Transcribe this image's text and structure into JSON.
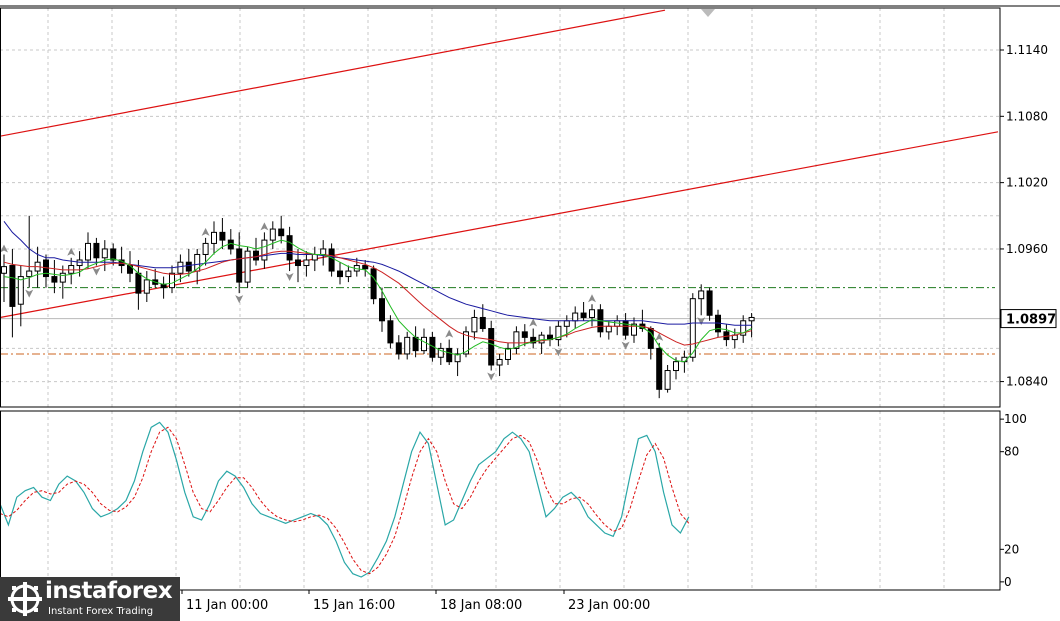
{
  "colors": {
    "channel": "#dd1111",
    "ma_blue": "#1a1aa0",
    "ma_red": "#cc2222",
    "ma_green": "#22bb22",
    "stoch_main": "#2aa7a7",
    "stoch_signal": "#dd1111",
    "level_green": "#1f7a1f",
    "level_orange": "#cc6622",
    "grid": "#c8c8c8"
  },
  "branding": {
    "name": "instaforex",
    "tagline": "Instant Forex Trading"
  },
  "chart_data": [
    {
      "type": "candlestick",
      "ylim": [
        1.0817,
        1.1178
      ],
      "yticks": [
        "1.1140",
        "1.1080",
        "1.1020",
        "1.0960",
        "1.0840"
      ],
      "current_price_label": "1.0897",
      "current_price": 1.0897,
      "levels": {
        "green_dashed": 1.0925,
        "orange_dashed": 1.0865
      },
      "channel_lines": [
        {
          "from": [
            0,
            1.1062
          ],
          "to": [
            665,
            1.1176
          ]
        },
        {
          "from": [
            0,
            1.0898
          ],
          "to": [
            998,
            1.1066
          ]
        }
      ],
      "candles": [
        [
          1.0938,
          1.0955,
          1.0912,
          1.0944
        ],
        [
          1.0945,
          1.096,
          1.088,
          1.0908
        ],
        [
          1.091,
          1.0945,
          1.089,
          1.0935
        ],
        [
          1.0935,
          1.099,
          1.0925,
          1.094
        ],
        [
          1.094,
          1.0962,
          1.0925,
          1.0948
        ],
        [
          1.095,
          1.0955,
          1.0925,
          1.0935
        ],
        [
          1.0935,
          1.095,
          1.092,
          1.093
        ],
        [
          1.093,
          1.0945,
          1.0915,
          1.0938
        ],
        [
          1.0938,
          1.0952,
          1.0928,
          1.0945
        ],
        [
          1.0945,
          1.0958,
          1.0935,
          1.095
        ],
        [
          1.095,
          1.0975,
          1.0942,
          1.0965
        ],
        [
          1.0965,
          1.097,
          1.0945,
          1.0952
        ],
        [
          1.0952,
          1.0968,
          1.094,
          1.096
        ],
        [
          1.096,
          1.0965,
          1.0945,
          1.095
        ],
        [
          1.095,
          1.0962,
          1.0938,
          1.0945
        ],
        [
          1.0945,
          1.0958,
          1.093,
          1.0938
        ],
        [
          1.0938,
          1.095,
          1.0905,
          1.092
        ],
        [
          1.092,
          1.094,
          1.0912,
          1.0932
        ],
        [
          1.0932,
          1.0942,
          1.0925,
          1.0928
        ],
        [
          1.0928,
          1.0935,
          1.0915,
          1.0925
        ],
        [
          1.0925,
          1.0945,
          1.092,
          1.0938
        ],
        [
          1.0938,
          1.0955,
          1.093,
          1.0948
        ],
        [
          1.0948,
          1.096,
          1.0935,
          1.094
        ],
        [
          1.094,
          1.096,
          1.0928,
          1.0955
        ],
        [
          1.0955,
          1.097,
          1.0945,
          1.0965
        ],
        [
          1.0965,
          1.0985,
          1.0955,
          1.0975
        ],
        [
          1.0975,
          1.0988,
          1.096,
          1.0968
        ],
        [
          1.0968,
          1.0978,
          1.0955,
          1.096
        ],
        [
          1.096,
          1.0975,
          1.092,
          1.093
        ],
        [
          1.093,
          1.0962,
          1.0925,
          1.0958
        ],
        [
          1.0958,
          1.097,
          1.0945,
          1.095
        ],
        [
          1.095,
          1.0975,
          1.0942,
          1.0968
        ],
        [
          1.0968,
          1.0985,
          1.096,
          1.0978
        ],
        [
          1.0978,
          1.099,
          1.0965,
          1.0972
        ],
        [
          1.0972,
          1.098,
          1.094,
          1.095
        ],
        [
          1.095,
          1.096,
          1.093,
          1.0945
        ],
        [
          1.0945,
          1.0958,
          1.0935,
          1.095
        ],
        [
          1.095,
          1.0962,
          1.094,
          1.0955
        ],
        [
          1.0955,
          1.0968,
          1.0945,
          1.096
        ],
        [
          1.096,
          1.0965,
          1.0935,
          1.094
        ],
        [
          1.094,
          1.0948,
          1.0928,
          1.0935
        ],
        [
          1.0935,
          1.0945,
          1.093,
          1.094
        ],
        [
          1.094,
          1.0952,
          1.0935,
          1.0945
        ],
        [
          1.0945,
          1.095,
          1.0935,
          1.0942
        ],
        [
          1.0942,
          1.0945,
          1.091,
          1.0915
        ],
        [
          1.0915,
          1.0925,
          1.0885,
          1.0895
        ],
        [
          1.0895,
          1.09,
          1.087,
          1.0875
        ],
        [
          1.0875,
          1.0882,
          1.086,
          1.0865
        ],
        [
          1.0865,
          1.0885,
          1.086,
          1.088
        ],
        [
          1.088,
          1.089,
          1.0862,
          1.0868
        ],
        [
          1.0868,
          1.0888,
          1.0865,
          1.088
        ],
        [
          1.088,
          1.0885,
          1.0858,
          1.0862
        ],
        [
          1.0862,
          1.0875,
          1.0855,
          1.087
        ],
        [
          1.087,
          1.0878,
          1.0855,
          1.0858
        ],
        [
          1.0858,
          1.087,
          1.0845,
          1.0865
        ],
        [
          1.0865,
          1.089,
          1.0862,
          1.0885
        ],
        [
          1.0885,
          1.0905,
          1.0878,
          1.0898
        ],
        [
          1.0898,
          1.091,
          1.0885,
          1.0888
        ],
        [
          1.0888,
          1.0895,
          1.085,
          1.0855
        ],
        [
          1.0855,
          1.0865,
          1.0845,
          1.086
        ],
        [
          1.086,
          1.0875,
          1.0855,
          1.087
        ],
        [
          1.087,
          1.089,
          1.0865,
          1.0885
        ],
        [
          1.0885,
          1.0892,
          1.0872,
          1.088
        ],
        [
          1.088,
          1.0888,
          1.087,
          1.0875
        ],
        [
          1.0875,
          1.0885,
          1.0865,
          1.0882
        ],
        [
          1.0882,
          1.089,
          1.0872,
          1.0878
        ],
        [
          1.0878,
          1.0895,
          1.0872,
          1.089
        ],
        [
          1.089,
          1.09,
          1.088,
          1.0895
        ],
        [
          1.0895,
          1.0908,
          1.0888,
          1.0902
        ],
        [
          1.0902,
          1.0912,
          1.0895,
          1.0898
        ],
        [
          1.0898,
          1.091,
          1.089,
          1.0905
        ],
        [
          1.0905,
          1.091,
          1.088,
          1.0885
        ],
        [
          1.0885,
          1.0895,
          1.0878,
          1.089
        ],
        [
          1.089,
          1.09,
          1.0882,
          1.0895
        ],
        [
          1.0895,
          1.0902,
          1.0878,
          1.0882
        ],
        [
          1.0882,
          1.0898,
          1.0875,
          1.0892
        ],
        [
          1.0892,
          1.0905,
          1.0885,
          1.0888
        ],
        [
          1.0888,
          1.089,
          1.086,
          1.087
        ],
        [
          1.087,
          1.0875,
          1.0825,
          1.0833
        ],
        [
          1.0833,
          1.0855,
          1.083,
          1.085
        ],
        [
          1.085,
          1.0862,
          1.0842,
          1.0858
        ],
        [
          1.0858,
          1.0868,
          1.0848,
          1.0862
        ],
        [
          1.0862,
          1.092,
          1.0858,
          1.0915
        ],
        [
          1.0915,
          1.0928,
          1.09,
          1.0922
        ],
        [
          1.0922,
          1.0925,
          1.0895,
          1.09
        ],
        [
          1.09,
          1.0905,
          1.088,
          1.0885
        ],
        [
          1.0885,
          1.0892,
          1.0872,
          1.0878
        ],
        [
          1.0878,
          1.0888,
          1.087,
          1.0882
        ],
        [
          1.0882,
          1.09,
          1.0875,
          1.0895
        ],
        [
          1.0895,
          1.0902,
          1.088,
          1.0898
        ]
      ],
      "moving_averages": {
        "blue": [
          1.0985,
          1.0975,
          1.0968,
          1.096,
          1.0955,
          1.0952,
          1.0952,
          1.095,
          1.0949,
          1.0948,
          1.0948,
          1.0948,
          1.0948,
          1.0948,
          1.0947,
          1.0946,
          1.0945,
          1.0944,
          1.0943,
          1.0943,
          1.0943,
          1.0944,
          1.0945,
          1.0946,
          1.0947,
          1.0948,
          1.0949,
          1.095,
          1.0951,
          1.0952,
          1.0953,
          1.0954,
          1.0955,
          1.0956,
          1.0956,
          1.0955,
          1.0955,
          1.0955,
          1.0954,
          1.0953,
          1.0952,
          1.0951,
          1.095,
          1.0949,
          1.0948,
          1.0946,
          1.0943,
          1.094,
          1.0936,
          1.0932,
          1.0928,
          1.0924,
          1.092,
          1.0916,
          1.0913,
          1.091,
          1.0908,
          1.0906,
          1.0904,
          1.0902,
          1.09,
          1.0899,
          1.0898,
          1.0897,
          1.0896,
          1.0895,
          1.0895,
          1.0895,
          1.0895,
          1.0895,
          1.0895,
          1.0895,
          1.0895,
          1.0895,
          1.0895,
          1.0895,
          1.0895,
          1.0894,
          1.0893,
          1.0892,
          1.0892,
          1.0892,
          1.0893,
          1.0893,
          1.0893,
          1.0893,
          1.0892,
          1.0891,
          1.0891,
          1.0891
        ],
        "red": [
          1.0948,
          1.0946,
          1.0945,
          1.0944,
          1.0944,
          1.0943,
          1.0942,
          1.0941,
          1.0941,
          1.0941,
          1.0942,
          1.0944,
          1.0946,
          1.0947,
          1.0947,
          1.0946,
          1.0944,
          1.0942,
          1.094,
          1.0938,
          1.0937,
          1.0937,
          1.0938,
          1.094,
          1.0942,
          1.0945,
          1.0948,
          1.095,
          1.0951,
          1.0952,
          1.0953,
          1.0955,
          1.0957,
          1.0958,
          1.0958,
          1.0957,
          1.0956,
          1.0955,
          1.0955,
          1.0954,
          1.0952,
          1.095,
          1.0948,
          1.0946,
          1.0943,
          1.0939,
          1.0934,
          1.0929,
          1.0922,
          1.0915,
          1.0908,
          1.0902,
          1.0896,
          1.089,
          1.0885,
          1.0882,
          1.088,
          1.0879,
          1.0878,
          1.0876,
          1.0875,
          1.0875,
          1.0875,
          1.0876,
          1.0877,
          1.0878,
          1.088,
          1.0882,
          1.0885,
          1.0887,
          1.0889,
          1.089,
          1.089,
          1.089,
          1.089,
          1.089,
          1.089,
          1.0888,
          1.0884,
          1.088,
          1.0876,
          1.0873,
          1.0874,
          1.0876,
          1.0878,
          1.088,
          1.0881,
          1.0882,
          1.0884,
          1.0886
        ],
        "green": [
          1.0935,
          1.0934,
          1.0932,
          1.0934,
          1.0937,
          1.0938,
          1.0937,
          1.0936,
          1.0937,
          1.0939,
          1.0944,
          1.0947,
          1.095,
          1.0951,
          1.0949,
          1.0945,
          1.0938,
          1.0933,
          1.093,
          1.0928,
          1.0929,
          1.0933,
          1.0937,
          1.0942,
          1.0948,
          1.0956,
          1.0962,
          1.0965,
          1.0963,
          1.0962,
          1.096,
          1.0962,
          1.0965,
          1.0968,
          1.0966,
          1.0961,
          1.0957,
          1.0955,
          1.0955,
          1.0952,
          1.0948,
          1.0944,
          1.0942,
          1.0941,
          1.0934,
          1.0922,
          1.0908,
          1.0895,
          1.0887,
          1.088,
          1.0876,
          1.0872,
          1.0868,
          1.0866,
          1.0864,
          1.0867,
          1.0872,
          1.0876,
          1.0874,
          1.0871,
          1.0869,
          1.0871,
          1.0874,
          1.0876,
          1.0878,
          1.0878,
          1.088,
          1.0883,
          1.0888,
          1.0892,
          1.0896,
          1.0895,
          1.0894,
          1.0893,
          1.0892,
          1.0891,
          1.0889,
          1.0884,
          1.0872,
          1.0864,
          1.0859,
          1.0858,
          1.0866,
          1.0878,
          1.0886,
          1.0888,
          1.0887,
          1.0884,
          1.0884,
          1.0888
        ]
      }
    },
    {
      "type": "line",
      "ylim": [
        -5,
        105
      ],
      "yticks": [
        "100",
        "80",
        "20",
        "0"
      ],
      "x_labels": [
        "11 Jan 00:00",
        "15 Jan 16:00",
        "18 Jan 08:00",
        "23 Jan 00:00"
      ],
      "series": [
        {
          "values": [
            48,
            35,
            52,
            56,
            58,
            52,
            50,
            60,
            65,
            62,
            55,
            45,
            40,
            42,
            45,
            50,
            62,
            80,
            95,
            98,
            92,
            75,
            55,
            40,
            38,
            48,
            62,
            68,
            65,
            58,
            48,
            42,
            40,
            38,
            36,
            38,
            40,
            42,
            40,
            35,
            25,
            12,
            5,
            3,
            6,
            15,
            25,
            40,
            60,
            80,
            92,
            85,
            60,
            35,
            38,
            50,
            62,
            72,
            76,
            80,
            88,
            92,
            88,
            80,
            60,
            40,
            45,
            52,
            55,
            50,
            40,
            35,
            30,
            28,
            40,
            65,
            88,
            90,
            80,
            55,
            35,
            30,
            40
          ]
        },
        {
          "values": [
            42,
            40,
            44,
            50,
            55,
            56,
            54,
            55,
            60,
            62,
            60,
            55,
            48,
            44,
            43,
            46,
            52,
            64,
            80,
            92,
            95,
            88,
            72,
            55,
            45,
            43,
            50,
            58,
            64,
            64,
            58,
            50,
            44,
            40,
            38,
            37,
            38,
            40,
            41,
            39,
            33,
            24,
            14,
            7,
            5,
            9,
            17,
            28,
            45,
            64,
            80,
            88,
            80,
            62,
            48,
            45,
            52,
            62,
            70,
            76,
            82,
            88,
            90,
            86,
            74,
            58,
            48,
            48,
            51,
            52,
            48,
            41,
            35,
            31,
            33,
            45,
            62,
            78,
            85,
            76,
            58,
            42,
            36
          ]
        }
      ]
    }
  ]
}
